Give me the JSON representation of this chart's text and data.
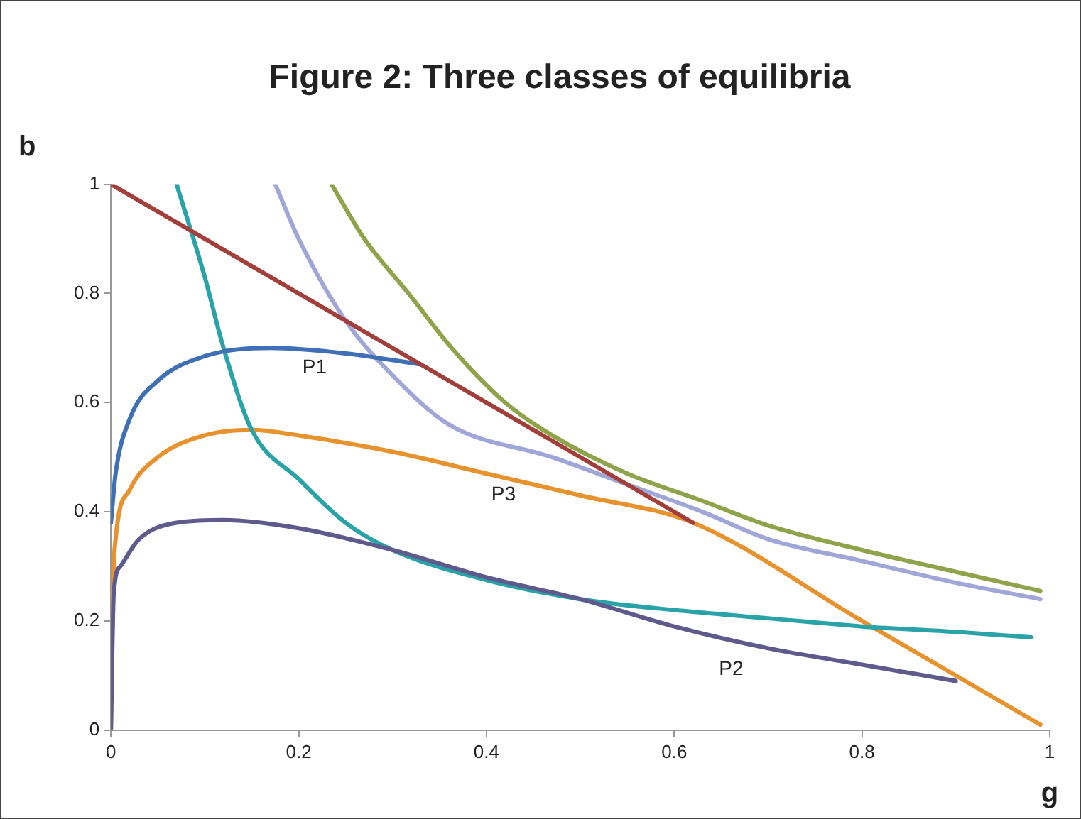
{
  "chart_data": {
    "type": "line",
    "title": "Figure 2: Three classes of equilibria",
    "xlabel": "g",
    "ylabel": "b",
    "xlim": [
      0,
      1
    ],
    "xticks": [
      0,
      0.2,
      0.4,
      0.6,
      0.8,
      1
    ],
    "ylim": [
      0,
      1
    ],
    "yticks": [
      0,
      0.2,
      0.4,
      0.6,
      0.8,
      1
    ],
    "grid": false,
    "legend": false,
    "marker": "none",
    "line_style": "solid",
    "series": [
      {
        "color": "#a33f3b",
        "x": [
          0,
          0.62
        ],
        "values": [
          1,
          0.38
        ]
      },
      {
        "name": "P1",
        "color": "#3f6fb5",
        "x": [
          0,
          0.005,
          0.02,
          0.05,
          0.1,
          0.17,
          0.25,
          0.33
        ],
        "values": [
          0.38,
          0.47,
          0.57,
          0.64,
          0.685,
          0.7,
          0.69,
          0.67
        ]
      },
      {
        "name": "P2",
        "color": "#5e5a8c",
        "x": [
          0,
          0.003,
          0.01,
          0.03,
          0.07,
          0.12,
          0.2,
          0.3,
          0.4,
          0.5,
          0.6,
          0.7,
          0.8,
          0.9
        ],
        "values": [
          0,
          0.25,
          0.3,
          0.35,
          0.38,
          0.385,
          0.37,
          0.33,
          0.28,
          0.24,
          0.19,
          0.15,
          0.12,
          0.09
        ]
      },
      {
        "color": "#2aa3a8",
        "x": [
          0.07,
          0.1,
          0.12,
          0.15,
          0.2,
          0.25,
          0.3,
          0.4,
          0.5,
          0.6,
          0.7,
          0.8,
          0.9,
          0.98
        ],
        "values": [
          1,
          0.83,
          0.7,
          0.55,
          0.46,
          0.38,
          0.33,
          0.275,
          0.24,
          0.22,
          0.205,
          0.19,
          0.18,
          0.17
        ]
      },
      {
        "color": "#9fa6d8",
        "x": [
          0.175,
          0.2,
          0.25,
          0.3,
          0.36,
          0.47,
          0.55,
          0.63,
          0.7,
          0.8,
          0.9,
          0.99
        ],
        "values": [
          1,
          0.9,
          0.75,
          0.65,
          0.56,
          0.5,
          0.45,
          0.4,
          0.35,
          0.31,
          0.27,
          0.24
        ]
      },
      {
        "color": "#8fa34a",
        "x": [
          0.235,
          0.27,
          0.317,
          0.363,
          0.42,
          0.47,
          0.55,
          0.63,
          0.7,
          0.8,
          0.9,
          0.99
        ],
        "values": [
          1,
          0.9,
          0.8,
          0.7,
          0.6,
          0.54,
          0.47,
          0.42,
          0.375,
          0.33,
          0.29,
          0.255
        ]
      },
      {
        "name": "P3",
        "color": "#e8922e",
        "x": [
          0,
          0.002,
          0.005,
          0.02,
          0.05,
          0.1,
          0.15,
          0.2,
          0.3,
          0.4,
          0.5,
          0.62,
          0.8,
          0.99
        ],
        "values": [
          0,
          0.25,
          0.35,
          0.44,
          0.5,
          0.54,
          0.55,
          0.54,
          0.51,
          0.47,
          0.43,
          0.38,
          0.2,
          0.01
        ]
      }
    ]
  }
}
